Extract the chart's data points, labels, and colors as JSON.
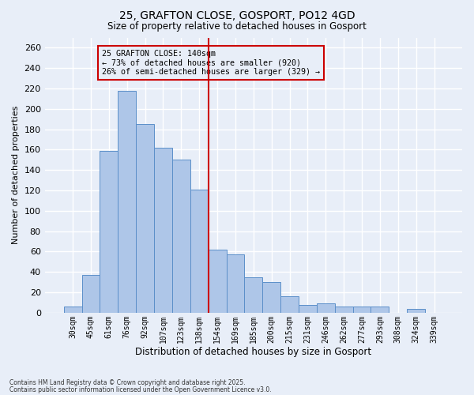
{
  "title_line1": "25, GRAFTON CLOSE, GOSPORT, PO12 4GD",
  "title_line2": "Size of property relative to detached houses in Gosport",
  "xlabel": "Distribution of detached houses by size in Gosport",
  "ylabel": "Number of detached properties",
  "footer_line1": "Contains HM Land Registry data © Crown copyright and database right 2025.",
  "footer_line2": "Contains public sector information licensed under the Open Government Licence v3.0.",
  "categories": [
    "30sqm",
    "45sqm",
    "61sqm",
    "76sqm",
    "92sqm",
    "107sqm",
    "123sqm",
    "138sqm",
    "154sqm",
    "169sqm",
    "185sqm",
    "200sqm",
    "215sqm",
    "231sqm",
    "246sqm",
    "262sqm",
    "277sqm",
    "293sqm",
    "308sqm",
    "324sqm",
    "339sqm"
  ],
  "values": [
    6,
    37,
    159,
    218,
    185,
    162,
    150,
    121,
    62,
    57,
    35,
    30,
    16,
    8,
    9,
    6,
    6,
    6,
    0,
    4,
    0
  ],
  "bar_color": "#aec6e8",
  "bar_edge_color": "#5b8fc9",
  "bg_color": "#e8eef8",
  "grid_color": "#ffffff",
  "vline_index": 7,
  "vline_color": "#cc0000",
  "annotation_text": "25 GRAFTON CLOSE: 140sqm\n← 73% of detached houses are smaller (920)\n26% of semi-detached houses are larger (329) →",
  "annotation_box_color": "#cc0000",
  "ylim": [
    0,
    270
  ],
  "yticks": [
    0,
    20,
    40,
    60,
    80,
    100,
    120,
    140,
    160,
    180,
    200,
    220,
    240,
    260
  ]
}
